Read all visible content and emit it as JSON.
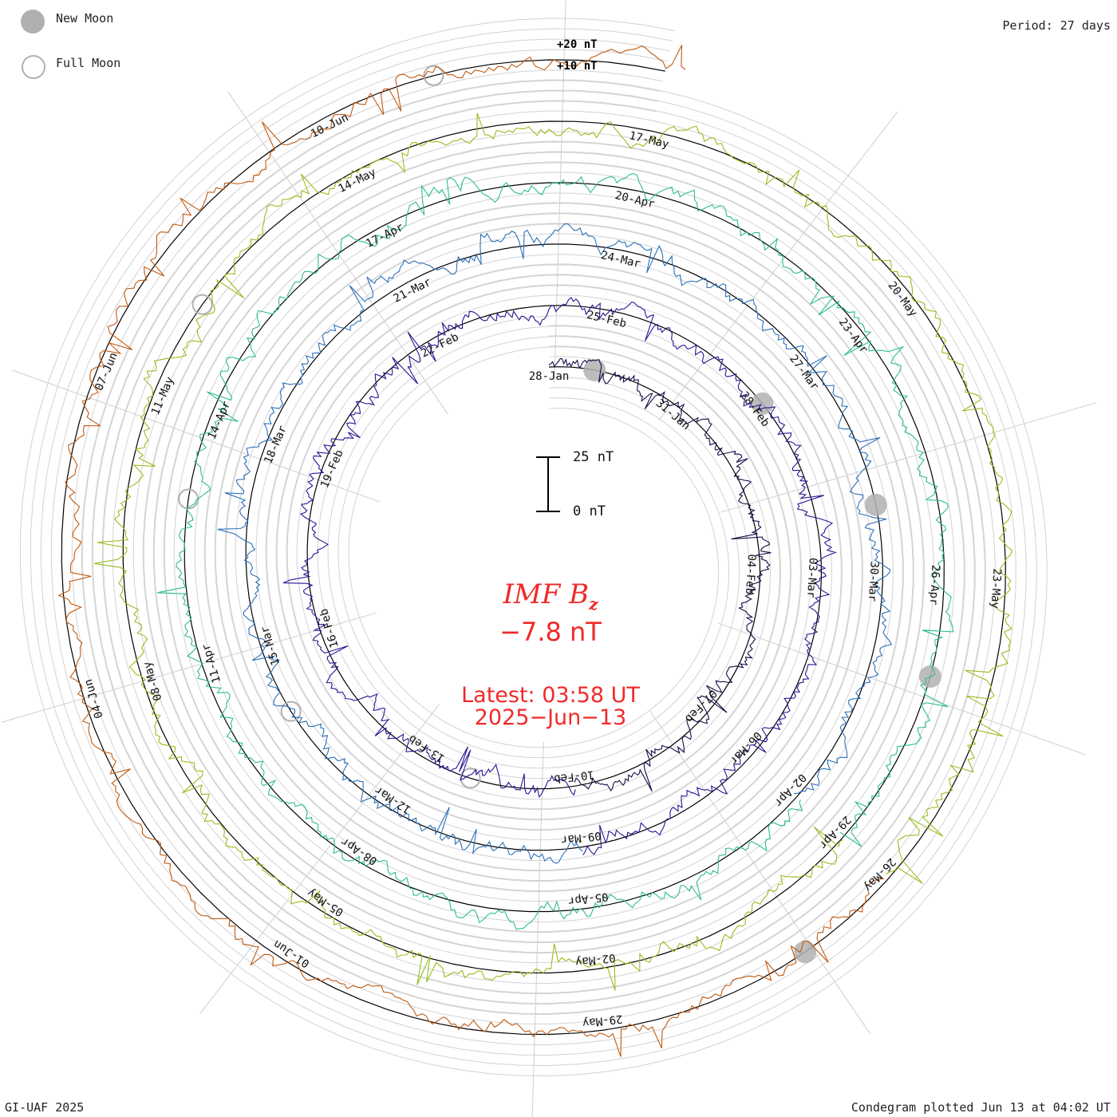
{
  "legend": {
    "new_moon_label": "New Moon",
    "full_moon_label": "Full Moon",
    "new_moon_color": "#b0b0b0",
    "full_moon_color": "#b0b0b0"
  },
  "period_label": "Period: 27 days",
  "credit": "GI-UAF 2025",
  "plotted_label": "Condegram plotted Jun 13 at 04:02 UT",
  "reference_labels": {
    "plus20": "+20 nT",
    "plus10": "+10 nT"
  },
  "scale_bar": {
    "top_label": "25 nT",
    "bottom_label": "0 nT"
  },
  "center": {
    "parameter_name": "IMF B",
    "parameter_subscript": "z",
    "current_value": "−7.8 nT",
    "latest_line1": "Latest: 03:58 UT",
    "latest_line2": "2025−Jun−13",
    "text_color": "#f02a2a"
  },
  "chart_data": {
    "type": "line",
    "subtype": "condegram-spiral",
    "period_days": 27,
    "quantity": "IMF Bz",
    "units": "nT",
    "latest_value": -7.8,
    "rotations": [
      {
        "start": "2025-01-28",
        "color": "#1c0a48",
        "date_labels": [
          "28-Jan",
          "31-Jan",
          "04-Feb",
          "07-Feb"
        ]
      },
      {
        "start": "2025-02-10",
        "color": "#2a1494",
        "date_labels": [
          "10-Feb",
          "13-Feb",
          "16-Feb",
          "19-Feb",
          "22-Feb",
          "25-Feb",
          "28-Feb",
          "03-Mar",
          "06-Mar"
        ]
      },
      {
        "start": "2025-03-09",
        "color": "#2c70b8",
        "date_labels": [
          "09-Mar",
          "12-Mar",
          "15-Mar",
          "18-Mar",
          "21-Mar",
          "24-Mar",
          "27-Mar",
          "30-Mar"
        ]
      },
      {
        "start": "2025-04-02",
        "color": "#2dbd8c",
        "date_labels": [
          "02-Apr",
          "05-Apr",
          "08-Apr",
          "11-Apr",
          "14-Apr",
          "17-Apr",
          "20-Apr",
          "23-Apr",
          "26-Apr"
        ]
      },
      {
        "start": "2025-04-29",
        "color": "#96bd1e",
        "date_labels": [
          "29-Apr",
          "02-May",
          "05-May",
          "08-May",
          "11-May",
          "14-May",
          "17-May",
          "20-May",
          "23-May"
        ]
      },
      {
        "start": "2025-05-26",
        "color": "#c05a10",
        "date_labels": [
          "26-May",
          "29-May",
          "01-Jun",
          "04-Jun",
          "07-Jun",
          "10-Jun"
        ]
      }
    ],
    "new_moons": [
      "2025-01-29",
      "2025-02-28",
      "2025-03-29",
      "2025-04-27",
      "2025-05-27"
    ],
    "full_moons": [
      "2025-02-12",
      "2025-03-14",
      "2025-04-13",
      "2025-05-12",
      "2025-06-11"
    ]
  }
}
